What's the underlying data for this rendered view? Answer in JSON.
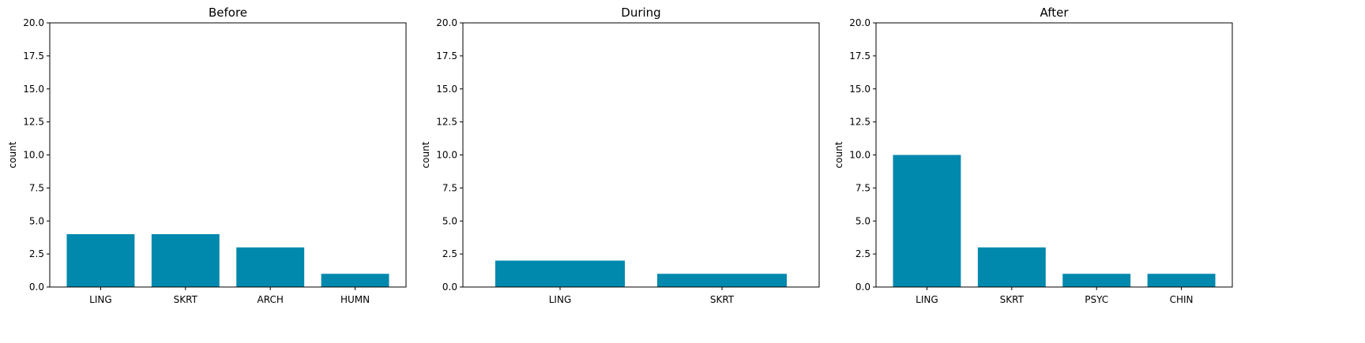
{
  "chart_data": [
    {
      "type": "bar",
      "title": "Before",
      "xlabel": "",
      "ylabel": "count",
      "ylim": [
        0,
        20
      ],
      "yticks": [
        "0.0",
        "2.5",
        "5.0",
        "7.5",
        "10.0",
        "12.5",
        "15.0",
        "17.5",
        "20.0"
      ],
      "categories": [
        "LING",
        "SKRT",
        "ARCH",
        "HUMN"
      ],
      "values": [
        4,
        4,
        3,
        1
      ],
      "bar_color": "#0088ad",
      "grid": false
    },
    {
      "type": "bar",
      "title": "During",
      "xlabel": "",
      "ylabel": "count",
      "ylim": [
        0,
        20
      ],
      "yticks": [
        "0.0",
        "2.5",
        "5.0",
        "7.5",
        "10.0",
        "12.5",
        "15.0",
        "17.5",
        "20.0"
      ],
      "categories": [
        "LING",
        "SKRT"
      ],
      "values": [
        2,
        1
      ],
      "bar_color": "#0088ad",
      "grid": false
    },
    {
      "type": "bar",
      "title": "After",
      "xlabel": "",
      "ylabel": "count",
      "ylim": [
        0,
        20
      ],
      "yticks": [
        "0.0",
        "2.5",
        "5.0",
        "7.5",
        "10.0",
        "12.5",
        "15.0",
        "17.5",
        "20.0"
      ],
      "categories": [
        "LING",
        "SKRT",
        "PSYC",
        "CHIN"
      ],
      "values": [
        10,
        3,
        1,
        1
      ],
      "bar_color": "#0088ad",
      "grid": false
    }
  ]
}
